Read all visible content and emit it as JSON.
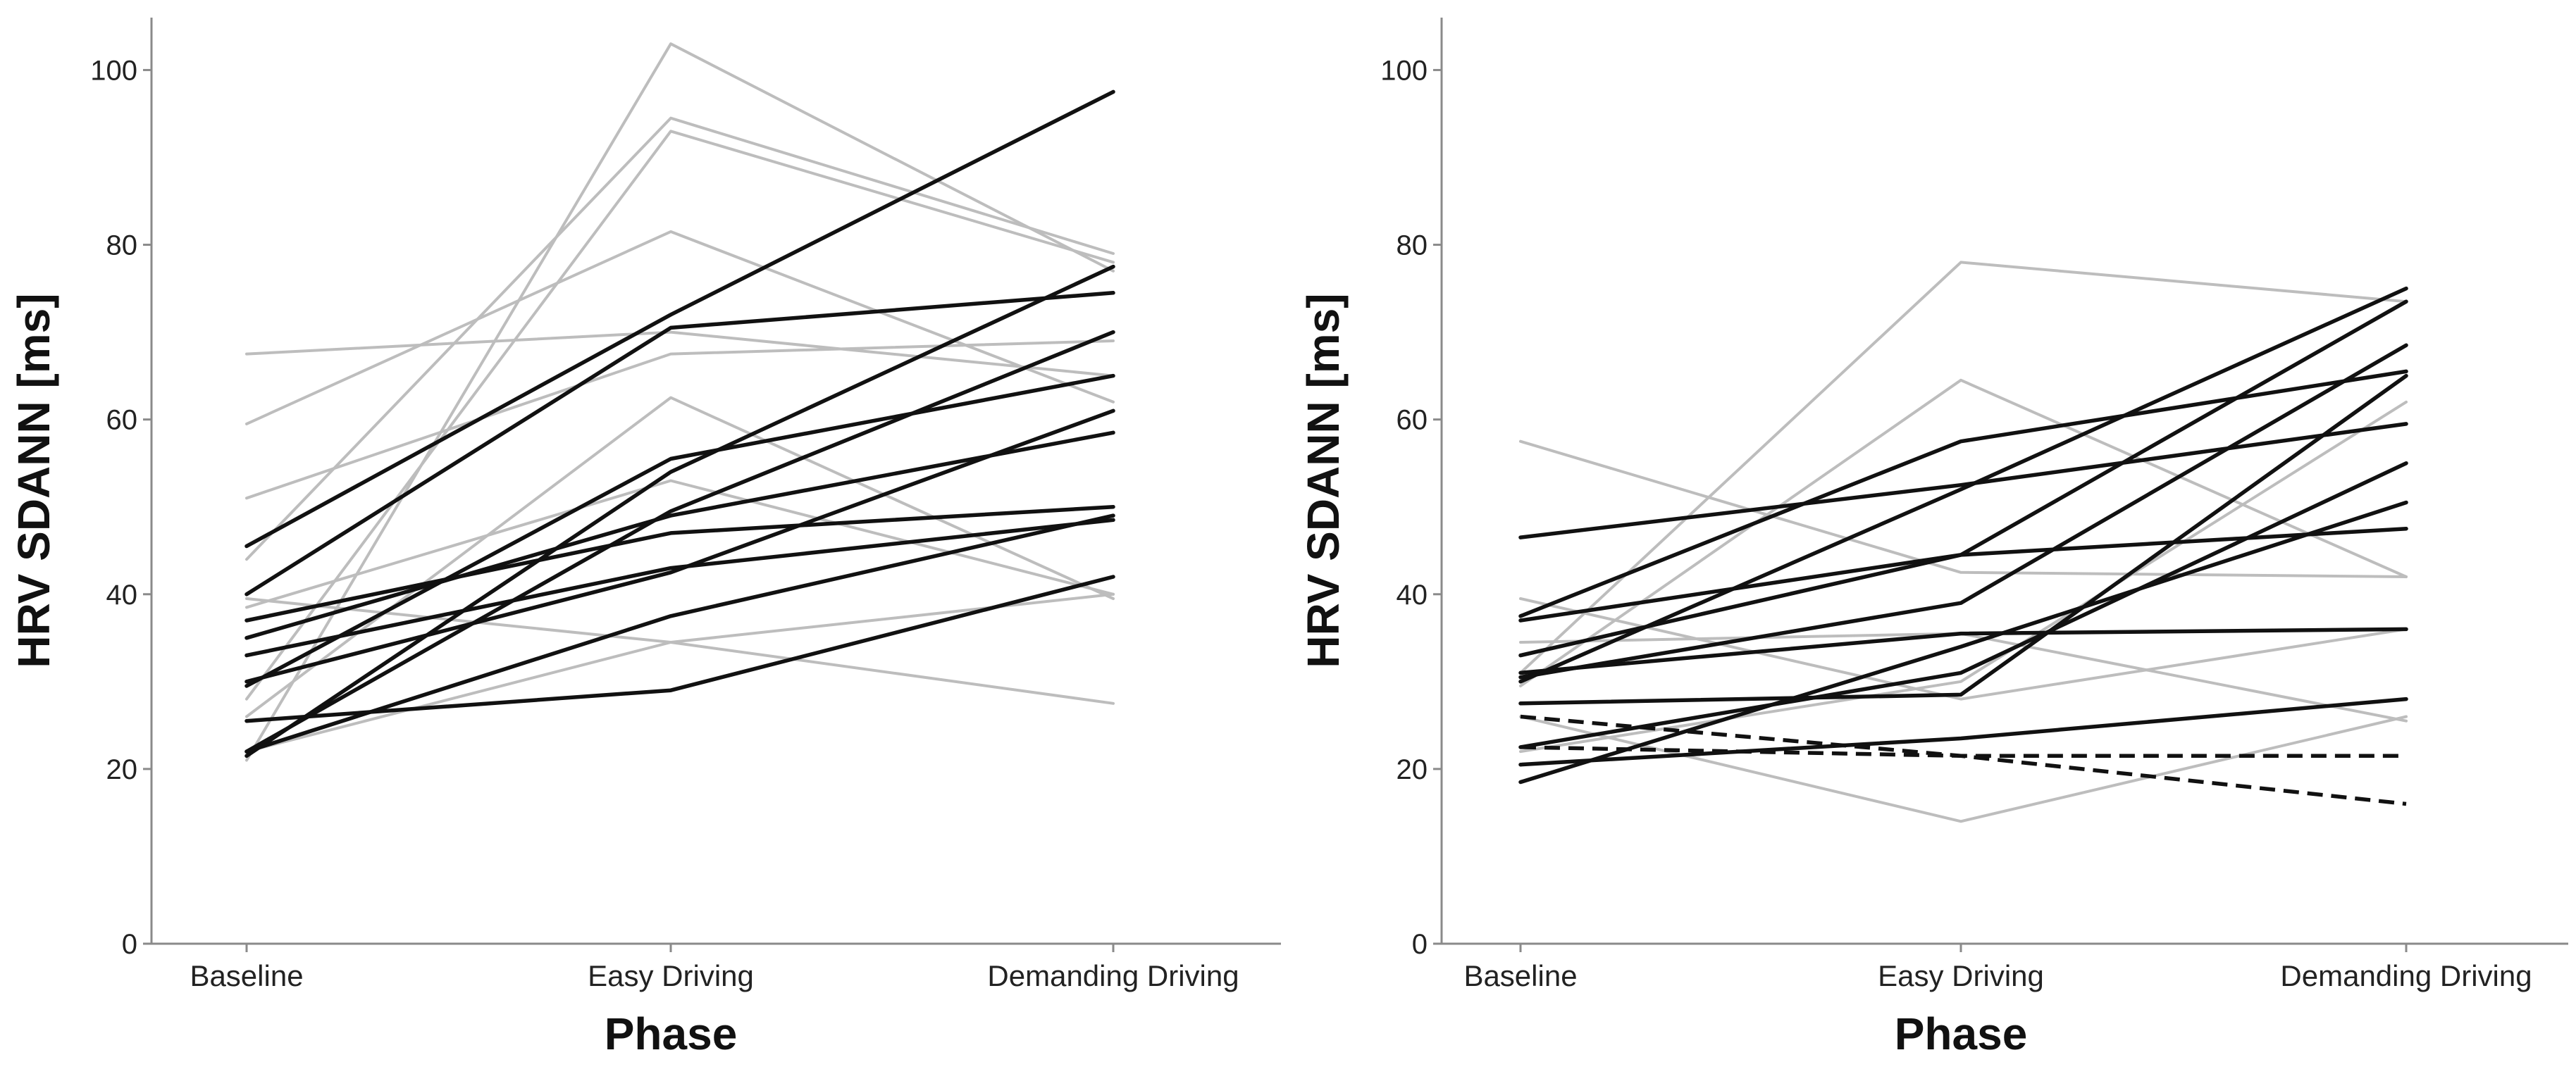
{
  "colors": {
    "highlight": "#111111",
    "context": "#bdbdbd",
    "axis": "#8a8a8a"
  },
  "chart_data": [
    {
      "type": "line",
      "title": "",
      "xlabel": "Phase",
      "ylabel": "HRV SDANN [ms]",
      "categories": [
        "Baseline",
        "Easy Driving",
        "Demanding Driving"
      ],
      "ylim": [
        0,
        106
      ],
      "yticks": [
        0,
        20,
        40,
        60,
        80,
        100
      ],
      "series": [
        {
          "name": "light-1",
          "style": "light",
          "values": [
            21,
            103,
            77
          ]
        },
        {
          "name": "light-2",
          "style": "light",
          "values": [
            44,
            94.5,
            79
          ]
        },
        {
          "name": "light-3",
          "style": "light",
          "values": [
            28,
            93,
            78
          ]
        },
        {
          "name": "light-4",
          "style": "light",
          "values": [
            59.5,
            81.5,
            62
          ]
        },
        {
          "name": "light-5",
          "style": "light",
          "values": [
            67.5,
            70,
            65
          ]
        },
        {
          "name": "light-6",
          "style": "light",
          "values": [
            51,
            67.5,
            69
          ]
        },
        {
          "name": "light-7",
          "style": "light",
          "values": [
            26,
            62.5,
            39.5
          ]
        },
        {
          "name": "light-8",
          "style": "light",
          "values": [
            38.5,
            53,
            40
          ]
        },
        {
          "name": "light-9",
          "style": "light",
          "values": [
            39.5,
            34.5,
            27.5
          ]
        },
        {
          "name": "light-10",
          "style": "light",
          "values": [
            22,
            34.5,
            40
          ]
        },
        {
          "name": "dark-1",
          "style": "dark",
          "values": [
            45.5,
            72,
            97.5
          ]
        },
        {
          "name": "dark-2",
          "style": "dark",
          "values": [
            40,
            70.5,
            74.5
          ]
        },
        {
          "name": "dark-3",
          "style": "dark",
          "values": [
            21.5,
            54,
            77.5
          ]
        },
        {
          "name": "dark-4",
          "style": "dark",
          "values": [
            29.5,
            55.5,
            65
          ]
        },
        {
          "name": "dark-5",
          "style": "dark",
          "values": [
            22,
            49.5,
            70
          ]
        },
        {
          "name": "dark-6",
          "style": "dark",
          "values": [
            35,
            49,
            58.5
          ]
        },
        {
          "name": "dark-7",
          "style": "dark",
          "values": [
            37,
            47,
            50
          ]
        },
        {
          "name": "dark-8",
          "style": "dark",
          "values": [
            30,
            42.5,
            61
          ]
        },
        {
          "name": "dark-9",
          "style": "dark",
          "values": [
            33,
            43,
            48.5
          ]
        },
        {
          "name": "dark-10",
          "style": "dark",
          "values": [
            22,
            37.5,
            49
          ]
        },
        {
          "name": "dark-11",
          "style": "dark",
          "values": [
            25.5,
            29,
            42
          ]
        }
      ]
    },
    {
      "type": "line",
      "title": "",
      "xlabel": "Phase",
      "ylabel": "HRV SDANN [ms]",
      "categories": [
        "Baseline",
        "Easy Driving",
        "Demanding Driving"
      ],
      "ylim": [
        0,
        106
      ],
      "yticks": [
        0,
        20,
        40,
        60,
        80,
        100
      ],
      "series": [
        {
          "name": "light-1",
          "style": "light",
          "values": [
            57.5,
            42.5,
            42
          ]
        },
        {
          "name": "light-2",
          "style": "light",
          "values": [
            31,
            78,
            73.5
          ]
        },
        {
          "name": "light-3",
          "style": "light",
          "values": [
            29.5,
            64.5,
            42
          ]
        },
        {
          "name": "light-4",
          "style": "light",
          "values": [
            34.5,
            35.5,
            25.5
          ]
        },
        {
          "name": "light-5",
          "style": "light",
          "values": [
            39.5,
            28,
            36
          ]
        },
        {
          "name": "light-6",
          "style": "light",
          "values": [
            26,
            14,
            26
          ]
        },
        {
          "name": "light-7",
          "style": "light",
          "values": [
            22,
            30,
            62
          ]
        },
        {
          "name": "dark-1",
          "style": "dark",
          "values": [
            46.5,
            52.5,
            59.5
          ]
        },
        {
          "name": "dark-2",
          "style": "dark",
          "values": [
            37.5,
            57.5,
            65.5
          ]
        },
        {
          "name": "dark-3",
          "style": "dark",
          "values": [
            37,
            44.5,
            73.5
          ]
        },
        {
          "name": "dark-4",
          "style": "dark",
          "values": [
            30,
            52,
            75
          ]
        },
        {
          "name": "dark-5",
          "style": "dark",
          "values": [
            33,
            44.5,
            47.5
          ]
        },
        {
          "name": "dark-6",
          "style": "dark",
          "values": [
            30.5,
            39,
            68.5
          ]
        },
        {
          "name": "dark-7",
          "style": "dark",
          "values": [
            31,
            35.5,
            36
          ]
        },
        {
          "name": "dark-8",
          "style": "dark",
          "values": [
            27.5,
            28.5,
            65
          ]
        },
        {
          "name": "dark-9",
          "style": "dark",
          "values": [
            22.5,
            31,
            55
          ]
        },
        {
          "name": "dark-10",
          "style": "dark",
          "values": [
            18.5,
            34,
            50.5
          ]
        },
        {
          "name": "dark-11",
          "style": "dark",
          "values": [
            20.5,
            23.5,
            28
          ]
        },
        {
          "name": "dark-dashed-1",
          "style": "dashed",
          "values": [
            26,
            21.5,
            16
          ]
        },
        {
          "name": "dark-dashed-2",
          "style": "dashed",
          "values": [
            22.5,
            21.5,
            21.5
          ]
        }
      ]
    }
  ]
}
